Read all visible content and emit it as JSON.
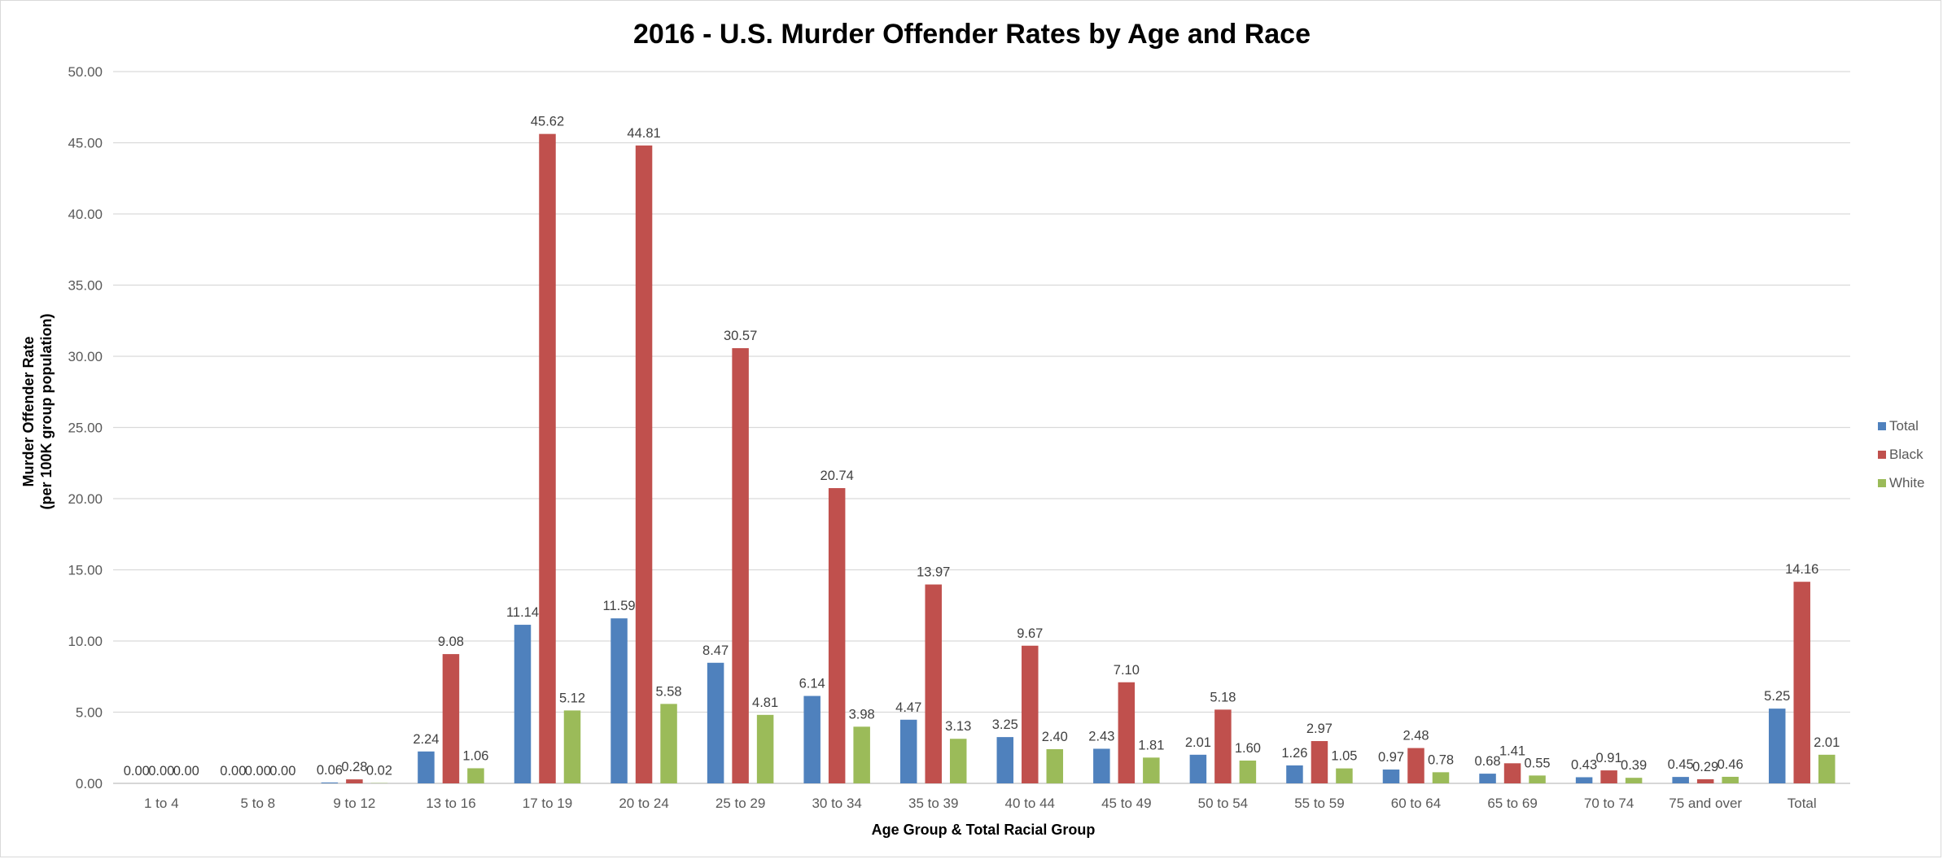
{
  "chart_data": {
    "type": "bar",
    "title": "2016 - U.S. Murder Offender Rates by Age and Race",
    "xlabel": "Age Group  & Total Racial Group",
    "ylabel_lines": [
      "Murder Offender Rate",
      "(per 100K group population)"
    ],
    "ylim": [
      0,
      50
    ],
    "ytick_step": 5,
    "ytick_labels": [
      "0.00",
      "5.00",
      "10.00",
      "15.00",
      "20.00",
      "25.00",
      "30.00",
      "35.00",
      "40.00",
      "45.00",
      "50.00"
    ],
    "grid": true,
    "legend_position": "right",
    "categories": [
      "1 to 4",
      "5 to 8",
      "9 to 12",
      "13 to 16",
      "17 to 19",
      "20 to 24",
      "25 to 29",
      "30 to 34",
      "35 to 39",
      "40 to 44",
      "45 to 49",
      "50 to 54",
      "55 to 59",
      "60 to 64",
      "65 to 69",
      "70 to 74",
      "75 and over",
      "Total"
    ],
    "series": [
      {
        "name": "Total",
        "color": "#4f81bd",
        "values": [
          0.0,
          0.0,
          0.06,
          2.24,
          11.14,
          11.59,
          8.47,
          6.14,
          4.47,
          3.25,
          2.43,
          2.01,
          1.26,
          0.97,
          0.68,
          0.43,
          0.45,
          5.25
        ]
      },
      {
        "name": "Black",
        "color": "#c0504d",
        "values": [
          0.0,
          0.0,
          0.28,
          9.08,
          45.62,
          44.81,
          30.57,
          20.74,
          13.97,
          9.67,
          7.1,
          5.18,
          2.97,
          2.48,
          1.41,
          0.91,
          0.29,
          14.16
        ]
      },
      {
        "name": "White",
        "color": "#9bbb59",
        "values": [
          0.0,
          0.0,
          0.02,
          1.06,
          5.12,
          5.58,
          4.81,
          3.98,
          3.13,
          2.4,
          1.81,
          1.6,
          1.05,
          0.78,
          0.55,
          0.39,
          0.46,
          2.01
        ]
      }
    ]
  }
}
